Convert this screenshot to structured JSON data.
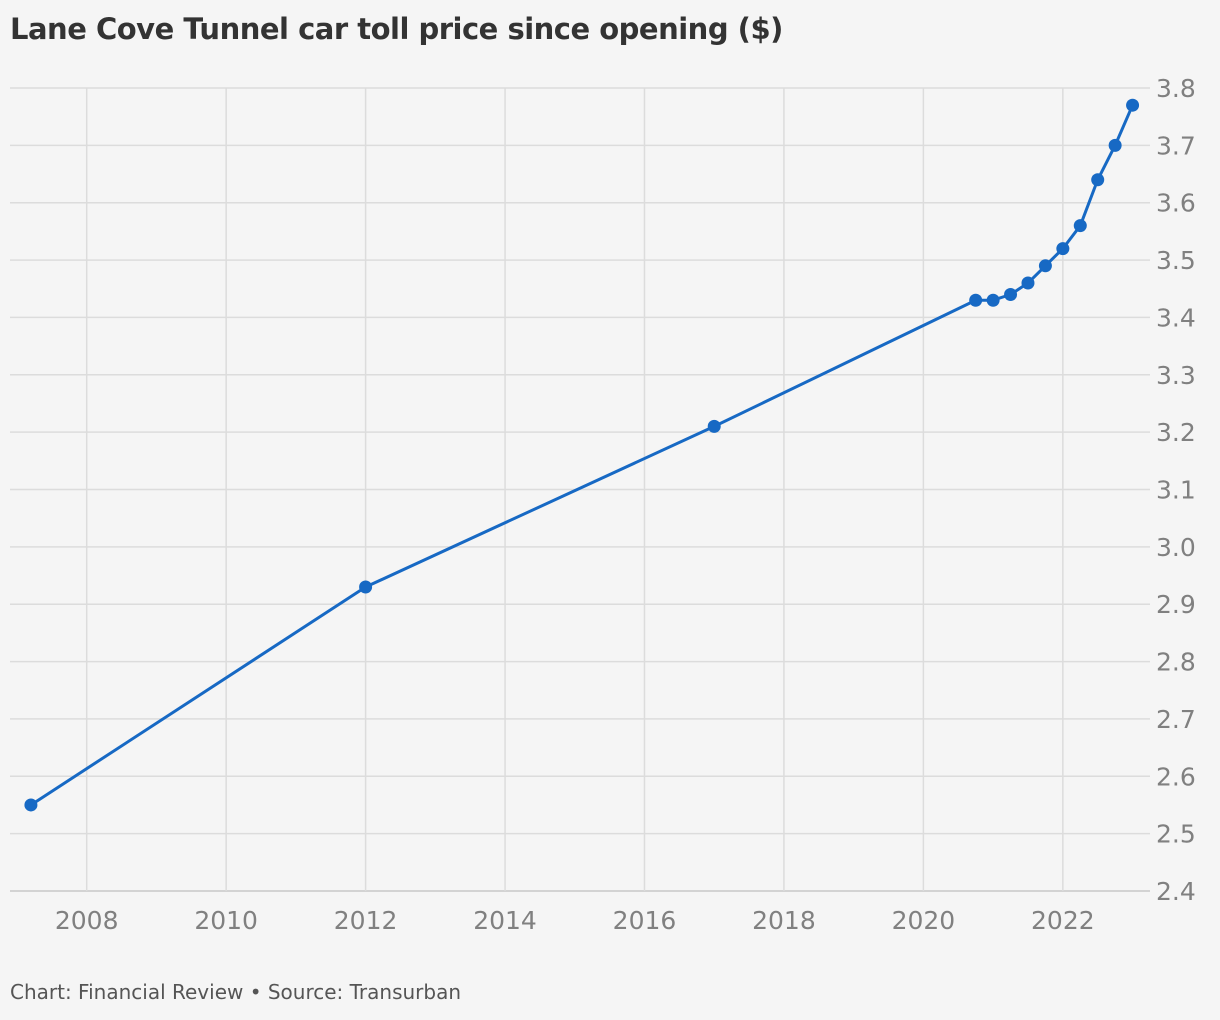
{
  "chart_data": {
    "type": "line",
    "title": "Lane Cove Tunnel car toll price since opening ($)",
    "xlabel": "",
    "ylabel": "",
    "x_ticks": [
      2008,
      2010,
      2012,
      2014,
      2016,
      2018,
      2020,
      2022
    ],
    "y_ticks": [
      2.4,
      2.5,
      2.6,
      2.7,
      2.8,
      2.9,
      3.0,
      3.1,
      3.2,
      3.3,
      3.4,
      3.5,
      3.6,
      3.7,
      3.8
    ],
    "xlim": [
      2006.9,
      2023.25
    ],
    "ylim": [
      2.4,
      3.8
    ],
    "y_axis_side": "right",
    "grid": true,
    "legend": false,
    "series": [
      {
        "color": "#1769c4",
        "points": [
          {
            "x": 2007.2,
            "y": 2.55
          },
          {
            "x": 2012.0,
            "y": 2.93
          },
          {
            "x": 2017.0,
            "y": 3.21
          },
          {
            "x": 2020.75,
            "y": 3.43
          },
          {
            "x": 2021.0,
            "y": 3.43
          },
          {
            "x": 2021.25,
            "y": 3.44
          },
          {
            "x": 2021.5,
            "y": 3.46
          },
          {
            "x": 2021.75,
            "y": 3.49
          },
          {
            "x": 2022.0,
            "y": 3.52
          },
          {
            "x": 2022.25,
            "y": 3.56
          },
          {
            "x": 2022.5,
            "y": 3.64
          },
          {
            "x": 2022.75,
            "y": 3.7
          },
          {
            "x": 2023.0,
            "y": 3.77
          }
        ]
      }
    ]
  },
  "footer": "Chart: Financial Review • Source: Transurban"
}
